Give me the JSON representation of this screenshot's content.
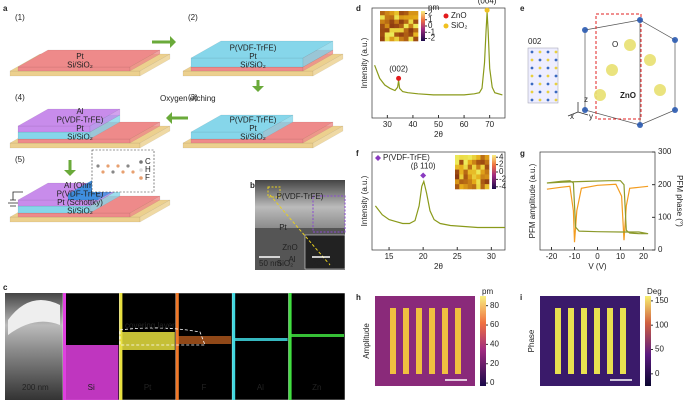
{
  "panel_labels": [
    "a",
    "b",
    "c",
    "d",
    "e",
    "f",
    "g",
    "h",
    "i"
  ],
  "panel_a": {
    "steps": [
      {
        "number": "(1)",
        "layers": [
          "Pt",
          "Si/SiO₂"
        ]
      },
      {
        "number": "(2)",
        "layers": [
          "P(VDF-TrFE)",
          "Pt",
          "Si/SiO₂"
        ]
      },
      {
        "number": "(3)",
        "layers": [
          "P(VDF-TrFE)",
          "Pt",
          "Si/SiO₂"
        ]
      },
      {
        "number": "(4)",
        "layers": [
          "Al",
          "P(VDF-TrFE)",
          "Pt",
          "Si/SiO₂"
        ]
      },
      {
        "number": "(5)",
        "layers": [
          "ZnO",
          "Al (Ohm)",
          "P(VDF-TrFE)",
          "Pt (Schottky)",
          "Si/SiO₂"
        ]
      }
    ],
    "arrow_label": "Oxygen etching",
    "molecule_legend": [
      "C",
      "H",
      "F"
    ]
  },
  "panel_b": {
    "labels": [
      "P(VDF-TrFE)",
      "Pt",
      "ZnO",
      "Al",
      "SiO₂"
    ],
    "scale_bars": [
      "50 nm",
      "20 nm"
    ]
  },
  "panel_c": {
    "scale_bar": "200 nm",
    "annotation": "covering layer",
    "elements": [
      {
        "name": "Si",
        "color": "#e040e0"
      },
      {
        "name": "Pt",
        "color": "#e8e040"
      },
      {
        "name": "F",
        "color": "#f07828"
      },
      {
        "name": "Al",
        "color": "#40d8e0"
      },
      {
        "name": "Zn",
        "color": "#40e040"
      }
    ]
  },
  "panel_e": {
    "labels": [
      "002",
      "O",
      "ZnO",
      "x",
      "y",
      "z"
    ]
  },
  "chart_data": [
    {
      "type": "line",
      "xlabel": "2θ",
      "ylabel": "Intensity (a.u.)",
      "xlim": [
        24,
        76
      ],
      "ylim": [
        0,
        100
      ],
      "xticks": [
        30,
        40,
        50,
        60,
        70
      ],
      "series": [
        {
          "color": "#8a9a1a",
          "x": [
            25,
            27,
            29,
            31,
            33,
            34,
            34.4,
            34.8,
            36,
            38,
            42,
            48,
            54,
            60,
            64,
            66,
            67,
            68,
            68.6,
            69,
            69.4,
            70,
            71,
            72,
            75
          ],
          "values": [
            48,
            36,
            30,
            27,
            25,
            28,
            34,
            27,
            24,
            23,
            22,
            21,
            21,
            21,
            22,
            23,
            27,
            50,
            80,
            96,
            80,
            45,
            28,
            23,
            21
          ]
        }
      ],
      "markers": [
        {
          "name": "ZnO",
          "color": "#e31a1c",
          "marker": "circle",
          "x": 34.4,
          "value": 36,
          "label": "(002)"
        },
        {
          "name": "SiO₂",
          "color": "#f0c020",
          "marker": "circle",
          "x": 69,
          "value": 98,
          "label": "(004)"
        }
      ],
      "inset": {
        "unit": "nm",
        "clim": [
          -2.4,
          2.4
        ],
        "ticks": [
          2,
          1,
          0,
          -1,
          -2
        ]
      }
    },
    {
      "type": "line",
      "xlabel": "2θ",
      "ylabel": "Intensity (a.u.)",
      "xlim": [
        12.5,
        32
      ],
      "ylim": [
        0,
        100
      ],
      "xticks": [
        15,
        20,
        25,
        30
      ],
      "series": [
        {
          "color": "#8a9a1a",
          "x": [
            13,
            14,
            15,
            16,
            17,
            18,
            18.8,
            19.4,
            19.8,
            20.1,
            20.5,
            21,
            21.6,
            22.5,
            24,
            26,
            28,
            30,
            32
          ],
          "values": [
            45,
            36,
            31,
            29,
            27,
            27,
            30,
            45,
            65,
            70,
            58,
            40,
            31,
            27,
            25,
            24,
            23,
            23,
            23
          ]
        }
      ],
      "markers": [
        {
          "name": "P(VDF-TrFE)",
          "color": "#8a3ac0",
          "marker": "diamond",
          "x": 20,
          "value": 76,
          "label": "(β 110)"
        }
      ],
      "inset": {
        "unit": "",
        "clim": [
          -4.6,
          4.6
        ],
        "ticks": [
          4,
          2,
          0,
          -2,
          -4
        ]
      }
    },
    {
      "type": "line",
      "xlabel": "V (V)",
      "ylabel": "PFM amplitude (a.u.)",
      "y2label": "PFM phase (°)",
      "xlim": [
        -25,
        25
      ],
      "ylim": [
        0,
        100
      ],
      "y2lim": [
        0,
        300
      ],
      "xticks": [
        -20,
        -10,
        0,
        10,
        20
      ],
      "y2ticks": [
        0,
        100,
        200,
        300
      ],
      "series": [
        {
          "color": "#f39c1f",
          "x": [
            -22,
            -16,
            -12,
            -10.5,
            -10,
            -9,
            -7,
            0,
            8,
            10.5,
            11.5,
            12.5,
            14,
            18,
            22
          ],
          "values": [
            62,
            64,
            65,
            40,
            8,
            40,
            63,
            66,
            67,
            55,
            10,
            45,
            63,
            64,
            65
          ]
        },
        {
          "color": "#8c9a2c",
          "axis": "y2",
          "x": [
            -22,
            -15,
            -5,
            5,
            10,
            11.5,
            12.5,
            14,
            18,
            22,
            18,
            10,
            0,
            -8,
            -9.5,
            -10.5,
            -12,
            -16,
            -22
          ],
          "values": [
            205,
            208,
            210,
            212,
            212,
            200,
            60,
            52,
            50,
            50,
            55,
            55,
            56,
            58,
            70,
            205,
            212,
            210,
            205
          ]
        }
      ]
    }
  ],
  "maps": [
    {
      "label": "Amplitude",
      "unit": "pm",
      "clim": [
        -3,
        90
      ],
      "ticks": [
        0,
        20,
        40,
        60,
        80
      ]
    },
    {
      "label": "Phase",
      "unit": "Deg",
      "clim": [
        -25,
        160
      ],
      "ticks": [
        0,
        50,
        100,
        150
      ]
    }
  ]
}
